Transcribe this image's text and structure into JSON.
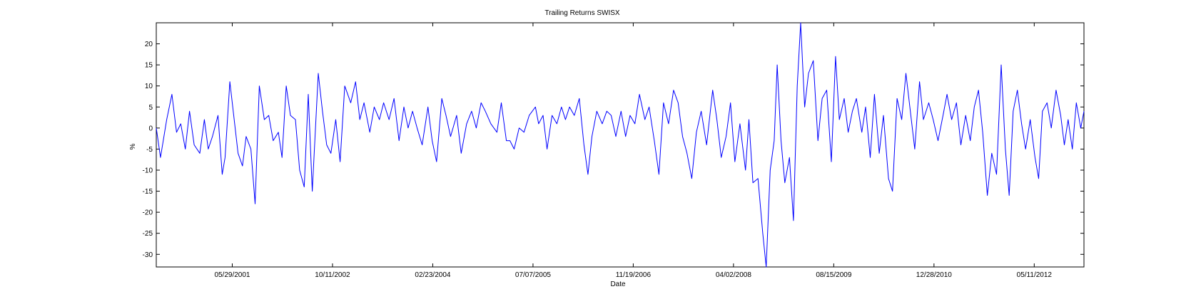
{
  "chart_data": {
    "type": "line",
    "title": "Trailing Returns SWISX",
    "xlabel": "Date",
    "ylabel": "%",
    "xlim": [
      "2000-05-15",
      "2013-01-14"
    ],
    "ylim": [
      -33,
      25
    ],
    "x_ticks": [
      "05/29/2001",
      "10/11/2002",
      "02/23/2004",
      "07/07/2005",
      "11/19/2006",
      "04/02/2008",
      "08/15/2009",
      "12/28/2010",
      "05/11/2012"
    ],
    "y_ticks": [
      20,
      15,
      10,
      5,
      0,
      -5,
      -10,
      -15,
      -20,
      -25,
      -30
    ],
    "grid": false,
    "series": [
      {
        "color": "#0000ff",
        "points": [
          [
            "2000-05-15",
            0
          ],
          [
            "2000-06-05",
            -7
          ],
          [
            "2000-07-06",
            2
          ],
          [
            "2000-08-01",
            8
          ],
          [
            "2000-08-24",
            -1
          ],
          [
            "2000-09-14",
            1
          ],
          [
            "2000-10-07",
            -5
          ],
          [
            "2000-10-28",
            4
          ],
          [
            "2000-11-20",
            -4
          ],
          [
            "2000-12-18",
            -6
          ],
          [
            "2001-01-10",
            2
          ],
          [
            "2001-01-29",
            -5
          ],
          [
            "2001-02-19",
            -2
          ],
          [
            "2001-03-19",
            3
          ],
          [
            "2001-04-09",
            -11
          ],
          [
            "2001-04-23",
            -7
          ],
          [
            "2001-05-17",
            11
          ],
          [
            "2001-06-05",
            3
          ],
          [
            "2001-06-27",
            -6
          ],
          [
            "2001-07-19",
            -9
          ],
          [
            "2001-08-06",
            -2
          ],
          [
            "2001-08-30",
            -5
          ],
          [
            "2001-09-20",
            -18
          ],
          [
            "2001-10-11",
            10
          ],
          [
            "2001-11-05",
            2
          ],
          [
            "2001-11-27",
            3
          ],
          [
            "2001-12-19",
            -3
          ],
          [
            "2002-01-14",
            -1
          ],
          [
            "2002-02-01",
            -7
          ],
          [
            "2002-02-22",
            10
          ],
          [
            "2002-03-15",
            3
          ],
          [
            "2002-04-09",
            2
          ],
          [
            "2002-04-30",
            -10
          ],
          [
            "2002-05-23",
            -14
          ],
          [
            "2002-06-12",
            8
          ],
          [
            "2002-07-02",
            -15
          ],
          [
            "2002-08-01",
            13
          ],
          [
            "2002-08-22",
            4
          ],
          [
            "2002-09-12",
            -4
          ],
          [
            "2002-10-03",
            -6
          ],
          [
            "2002-10-27",
            2
          ],
          [
            "2002-11-18",
            -8
          ],
          [
            "2002-12-11",
            10
          ],
          [
            "2003-01-10",
            6
          ],
          [
            "2003-02-03",
            11
          ],
          [
            "2003-02-24",
            2
          ],
          [
            "2003-03-17",
            6
          ],
          [
            "2003-04-15",
            -1
          ],
          [
            "2003-05-07",
            5
          ],
          [
            "2003-06-02",
            2
          ],
          [
            "2003-06-23",
            6
          ],
          [
            "2003-07-20",
            2
          ],
          [
            "2003-08-14",
            7
          ],
          [
            "2003-09-08",
            -3
          ],
          [
            "2003-10-02",
            5
          ],
          [
            "2003-10-23",
            0
          ],
          [
            "2003-11-14",
            4
          ],
          [
            "2003-12-07",
            0
          ],
          [
            "2004-01-01",
            -4
          ],
          [
            "2004-01-30",
            5
          ],
          [
            "2004-02-20",
            -3
          ],
          [
            "2004-03-13",
            -8
          ],
          [
            "2004-04-08",
            7
          ],
          [
            "2004-04-29",
            3
          ],
          [
            "2004-05-22",
            -2
          ],
          [
            "2004-06-21",
            3
          ],
          [
            "2004-07-14",
            -6
          ],
          [
            "2004-08-10",
            1
          ],
          [
            "2004-09-04",
            4
          ],
          [
            "2004-09-27",
            0
          ],
          [
            "2004-10-21",
            6
          ],
          [
            "2004-11-11",
            4
          ],
          [
            "2004-12-09",
            1
          ],
          [
            "2005-01-08",
            -1
          ],
          [
            "2005-01-30",
            6
          ],
          [
            "2005-02-24",
            -3
          ],
          [
            "2005-03-14",
            -3
          ],
          [
            "2005-04-04",
            -5
          ],
          [
            "2005-04-29",
            0
          ],
          [
            "2005-05-23",
            -1
          ],
          [
            "2005-06-18",
            3
          ],
          [
            "2005-07-19",
            5
          ],
          [
            "2005-08-04",
            1
          ],
          [
            "2005-08-26",
            3
          ],
          [
            "2005-09-15",
            -5
          ],
          [
            "2005-10-10",
            3
          ],
          [
            "2005-11-03",
            1
          ],
          [
            "2005-11-26",
            5
          ],
          [
            "2005-12-16",
            2
          ],
          [
            "2006-01-05",
            5
          ],
          [
            "2006-01-29",
            3
          ],
          [
            "2006-02-23",
            7
          ],
          [
            "2006-03-18",
            -4
          ],
          [
            "2006-04-07",
            -11
          ],
          [
            "2006-04-27",
            -2
          ],
          [
            "2006-05-21",
            4
          ],
          [
            "2006-06-17",
            1
          ],
          [
            "2006-07-10",
            4
          ],
          [
            "2006-08-01",
            3
          ],
          [
            "2006-08-24",
            -2
          ],
          [
            "2006-09-19",
            4
          ],
          [
            "2006-10-12",
            -2
          ],
          [
            "2006-11-03",
            3
          ],
          [
            "2006-11-27",
            1
          ],
          [
            "2006-12-20",
            8
          ],
          [
            "2007-01-16",
            2
          ],
          [
            "2007-02-06",
            5
          ],
          [
            "2007-03-04",
            -3
          ],
          [
            "2007-03-27",
            -11
          ],
          [
            "2007-04-19",
            6
          ],
          [
            "2007-05-14",
            1
          ],
          [
            "2007-06-08",
            9
          ],
          [
            "2007-07-01",
            6
          ],
          [
            "2007-07-23",
            -2
          ],
          [
            "2007-08-14",
            -6
          ],
          [
            "2007-09-07",
            -12
          ],
          [
            "2007-09-30",
            -1
          ],
          [
            "2007-10-24",
            4
          ],
          [
            "2007-11-20",
            -4
          ],
          [
            "2007-12-20",
            9
          ],
          [
            "2008-01-10",
            2
          ],
          [
            "2008-02-01",
            -7
          ],
          [
            "2008-02-25",
            -2
          ],
          [
            "2008-03-18",
            6
          ],
          [
            "2008-04-09",
            -8
          ],
          [
            "2008-05-04",
            1
          ],
          [
            "2008-06-01",
            -10
          ],
          [
            "2008-06-18",
            2
          ],
          [
            "2008-07-08",
            -13
          ],
          [
            "2008-08-02",
            -12
          ],
          [
            "2008-08-26",
            -25
          ],
          [
            "2008-09-12",
            -33
          ],
          [
            "2008-10-02",
            -10
          ],
          [
            "2008-10-22",
            -3
          ],
          [
            "2008-11-06",
            15
          ],
          [
            "2008-11-25",
            -3
          ],
          [
            "2008-12-14",
            -13
          ],
          [
            "2009-01-06",
            -7
          ],
          [
            "2009-01-26",
            -22
          ],
          [
            "2009-02-14",
            10
          ],
          [
            "2009-03-03",
            25
          ],
          [
            "2009-03-23",
            5
          ],
          [
            "2009-04-11",
            13
          ],
          [
            "2009-05-05",
            16
          ],
          [
            "2009-05-28",
            -3
          ],
          [
            "2009-06-18",
            7
          ],
          [
            "2009-07-11",
            9
          ],
          [
            "2009-08-03",
            -8
          ],
          [
            "2009-08-24",
            17
          ],
          [
            "2009-09-12",
            2
          ],
          [
            "2009-10-06",
            7
          ],
          [
            "2009-10-26",
            -1
          ],
          [
            "2009-11-16",
            4
          ],
          [
            "2009-12-06",
            7
          ],
          [
            "2010-01-02",
            -1
          ],
          [
            "2010-01-21",
            5
          ],
          [
            "2010-02-13",
            -7
          ],
          [
            "2010-03-06",
            8
          ],
          [
            "2010-03-30",
            -6
          ],
          [
            "2010-04-20",
            3
          ],
          [
            "2010-05-15",
            -12
          ],
          [
            "2010-06-04",
            -15
          ],
          [
            "2010-06-27",
            7
          ],
          [
            "2010-07-20",
            2
          ],
          [
            "2010-08-10",
            13
          ],
          [
            "2010-09-01",
            4
          ],
          [
            "2010-09-23",
            -5
          ],
          [
            "2010-10-17",
            11
          ],
          [
            "2010-11-05",
            2
          ],
          [
            "2010-12-02",
            6
          ],
          [
            "2010-12-24",
            2
          ],
          [
            "2011-01-17",
            -3
          ],
          [
            "2011-02-11",
            3
          ],
          [
            "2011-03-03",
            8
          ],
          [
            "2011-03-26",
            2
          ],
          [
            "2011-04-19",
            6
          ],
          [
            "2011-05-11",
            -4
          ],
          [
            "2011-06-04",
            3
          ],
          [
            "2011-06-27",
            -3
          ],
          [
            "2011-07-17",
            5
          ],
          [
            "2011-08-07",
            9
          ],
          [
            "2011-08-28",
            -1
          ],
          [
            "2011-09-20",
            -16
          ],
          [
            "2011-10-12",
            -6
          ],
          [
            "2011-11-05",
            -11
          ],
          [
            "2011-11-28",
            15
          ],
          [
            "2011-12-19",
            -5
          ],
          [
            "2012-01-07",
            -16
          ],
          [
            "2012-01-27",
            4
          ],
          [
            "2012-02-17",
            9
          ],
          [
            "2012-03-09",
            1
          ],
          [
            "2012-03-29",
            -5
          ],
          [
            "2012-04-21",
            2
          ],
          [
            "2012-05-15",
            -7
          ],
          [
            "2012-06-02",
            -12
          ],
          [
            "2012-06-21",
            4
          ],
          [
            "2012-07-14",
            6
          ],
          [
            "2012-08-04",
            0
          ],
          [
            "2012-08-28",
            9
          ],
          [
            "2012-09-20",
            3
          ],
          [
            "2012-10-08",
            -4
          ],
          [
            "2012-10-27",
            2
          ],
          [
            "2012-11-17",
            -5
          ],
          [
            "2012-12-07",
            6
          ],
          [
            "2012-12-29",
            0
          ],
          [
            "2013-01-14",
            4
          ]
        ]
      }
    ]
  }
}
